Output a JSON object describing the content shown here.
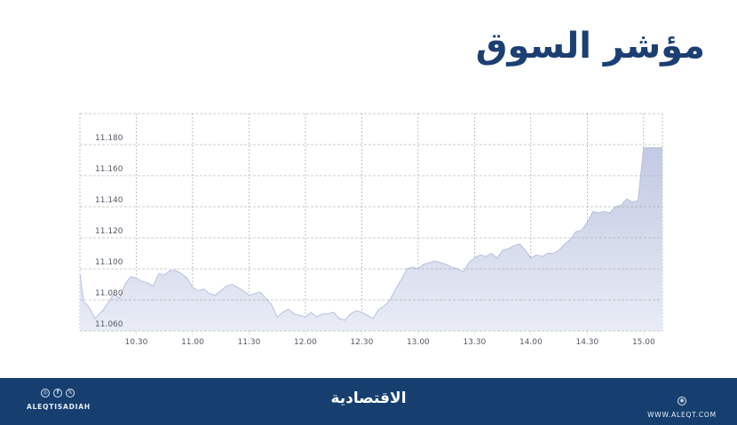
{
  "header": {
    "title": "مؤشر السوق"
  },
  "chart_data": {
    "type": "area",
    "title": "مؤشر السوق",
    "xlabel": "",
    "ylabel": "",
    "ylim": [
      11.06,
      11.2
    ],
    "y_ticks": [
      "11.060",
      "11.080",
      "11.100",
      "11.120",
      "11.140",
      "11.160",
      "11.180"
    ],
    "x_ticks": [
      "10.30",
      "11.00",
      "11.30",
      "12.00",
      "12.30",
      "13.00",
      "13.30",
      "14.00",
      "14.30",
      "15.00"
    ],
    "grid": true,
    "legend": "none",
    "colors": {
      "fill_top": "#c2cae3",
      "fill_bottom": "#e9ecf6",
      "line": "#b7c0dc",
      "grid": "#9a9a9a"
    },
    "series": [
      {
        "name": "مؤشر السوق",
        "x": [
          "10:00",
          "10:02",
          "10:05",
          "10:08",
          "10:12",
          "10:15",
          "10:18",
          "10:21",
          "10:24",
          "10:27",
          "10:30",
          "10:33",
          "10:36",
          "10:39",
          "10:42",
          "10:45",
          "10:48",
          "10:51",
          "10:54",
          "10:57",
          "11:00",
          "11:03",
          "11:06",
          "11:09",
          "11:12",
          "11:15",
          "11:18",
          "11:21",
          "11:24",
          "11:27",
          "11:30",
          "11:33",
          "11:36",
          "11:39",
          "11:42",
          "11:45",
          "11:48",
          "11:51",
          "11:54",
          "11:57",
          "12:00",
          "12:03",
          "12:06",
          "12:09",
          "12:12",
          "12:15",
          "12:18",
          "12:21",
          "12:24",
          "12:27",
          "12:30",
          "12:33",
          "12:36",
          "12:39",
          "12:42",
          "12:45",
          "12:48",
          "12:51",
          "12:54",
          "12:57",
          "13:00",
          "13:03",
          "13:06",
          "13:09",
          "13:12",
          "13:15",
          "13:18",
          "13:21",
          "13:24",
          "13:27",
          "13:30",
          "13:33",
          "13:36",
          "13:39",
          "13:42",
          "13:45",
          "13:48",
          "13:51",
          "13:54",
          "13:57",
          "14:00",
          "14:03",
          "14:06",
          "14:09",
          "14:12",
          "14:15",
          "14:18",
          "14:21",
          "14:24",
          "14:27",
          "14:30",
          "14:33",
          "14:36",
          "14:39",
          "14:42",
          "14:45",
          "14:48",
          "14:51",
          "14:54",
          "14:57",
          "15:00",
          "15:10"
        ],
        "values": [
          11.097,
          11.079,
          11.075,
          11.068,
          11.073,
          11.078,
          11.084,
          11.081,
          11.09,
          11.095,
          11.094,
          11.092,
          11.091,
          11.089,
          11.097,
          11.096,
          11.099,
          11.099,
          11.097,
          11.094,
          11.088,
          11.086,
          11.087,
          11.084,
          11.083,
          11.086,
          11.089,
          11.09,
          11.088,
          11.086,
          11.083,
          11.084,
          11.085,
          11.081,
          11.077,
          11.069,
          11.072,
          11.074,
          11.071,
          11.07,
          11.069,
          11.072,
          11.069,
          11.071,
          11.071,
          11.072,
          11.068,
          11.067,
          11.071,
          11.073,
          11.072,
          11.07,
          11.068,
          11.074,
          11.076,
          11.08,
          11.087,
          11.093,
          11.1,
          11.101,
          11.1,
          11.103,
          11.104,
          11.105,
          11.104,
          11.103,
          11.101,
          11.1,
          11.098,
          11.104,
          11.107,
          11.109,
          11.108,
          11.11,
          11.107,
          11.112,
          11.113,
          11.115,
          11.116,
          11.112,
          11.107,
          11.109,
          11.108,
          11.11,
          11.11,
          11.112,
          11.116,
          11.119,
          11.124,
          11.125,
          11.13,
          11.137,
          11.136,
          11.137,
          11.136,
          11.14,
          11.141,
          11.145,
          11.143,
          11.144,
          11.178,
          11.178
        ]
      }
    ]
  },
  "footer": {
    "social_icons": [
      "instagram-icon",
      "facebook-icon",
      "x-icon"
    ],
    "social_glyphs": [
      "◎",
      "f",
      "𝕏"
    ],
    "handle": "ALEQTISADIAH",
    "brand": "الاقتصادية",
    "web_glyph": "◉",
    "url": "WWW.ALEQT.COM",
    "background": "#163f70"
  }
}
